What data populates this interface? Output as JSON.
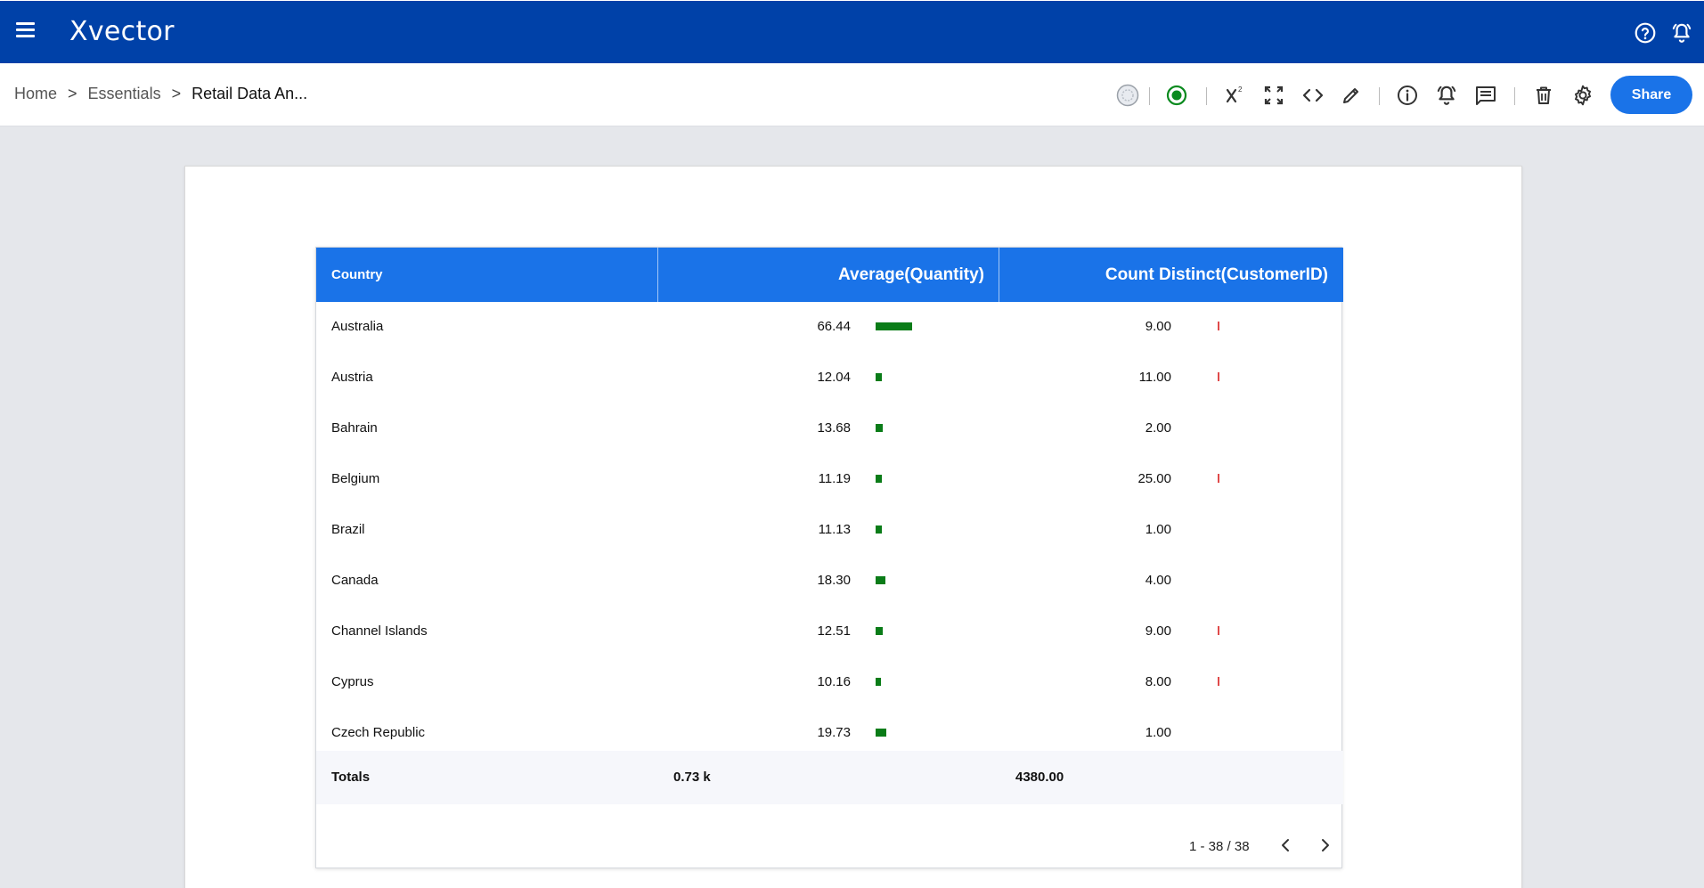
{
  "app": {
    "logo": "Xvector"
  },
  "breadcrumb": {
    "items": [
      "Home",
      "Essentials"
    ],
    "separator": ">",
    "current": "Retail Data An..."
  },
  "toolbar": {
    "share_label": "Share"
  },
  "table": {
    "headers": {
      "country": "Country",
      "avg": "Average(Quantity)",
      "count": "Count Distinct(CustomerID)"
    },
    "rows": [
      {
        "country": "Australia",
        "avg": "66.44",
        "count": "9.00",
        "avg_value": 66.44,
        "count_value": 9
      },
      {
        "country": "Austria",
        "avg": "12.04",
        "count": "11.00",
        "avg_value": 12.04,
        "count_value": 11
      },
      {
        "country": "Bahrain",
        "avg": "13.68",
        "count": "2.00",
        "avg_value": 13.68,
        "count_value": 2
      },
      {
        "country": "Belgium",
        "avg": "11.19",
        "count": "25.00",
        "avg_value": 11.19,
        "count_value": 25
      },
      {
        "country": "Brazil",
        "avg": "11.13",
        "count": "1.00",
        "avg_value": 11.13,
        "count_value": 1
      },
      {
        "country": "Canada",
        "avg": "18.30",
        "count": "4.00",
        "avg_value": 18.3,
        "count_value": 4
      },
      {
        "country": "Channel Islands",
        "avg": "12.51",
        "count": "9.00",
        "avg_value": 12.51,
        "count_value": 9
      },
      {
        "country": "Cyprus",
        "avg": "10.16",
        "count": "8.00",
        "avg_value": 10.16,
        "count_value": 8
      },
      {
        "country": "Czech Republic",
        "avg": "19.73",
        "count": "1.00",
        "avg_value": 19.73,
        "count_value": 1
      }
    ],
    "totals": {
      "label": "Totals",
      "avg": "0.73 k",
      "count": "4380.00"
    },
    "pagination": "1 - 38 / 38"
  },
  "colors": {
    "header_bar": "#0041a8",
    "accent": "#1a73e8",
    "avg_bar": "#0a7c18",
    "count_bar": "#e04a4a",
    "status": "#0a8a1e"
  },
  "icons": {
    "topbar": [
      "menu-icon",
      "help-icon",
      "notification-bell-icon"
    ],
    "toolbar": [
      "refresh-status-icon",
      "live-status-icon",
      "formula-icon",
      "fullscreen-icon",
      "embed-code-icon",
      "edit-icon",
      "info-icon",
      "alert-icon",
      "comment-icon",
      "delete-icon",
      "settings-icon"
    ]
  }
}
